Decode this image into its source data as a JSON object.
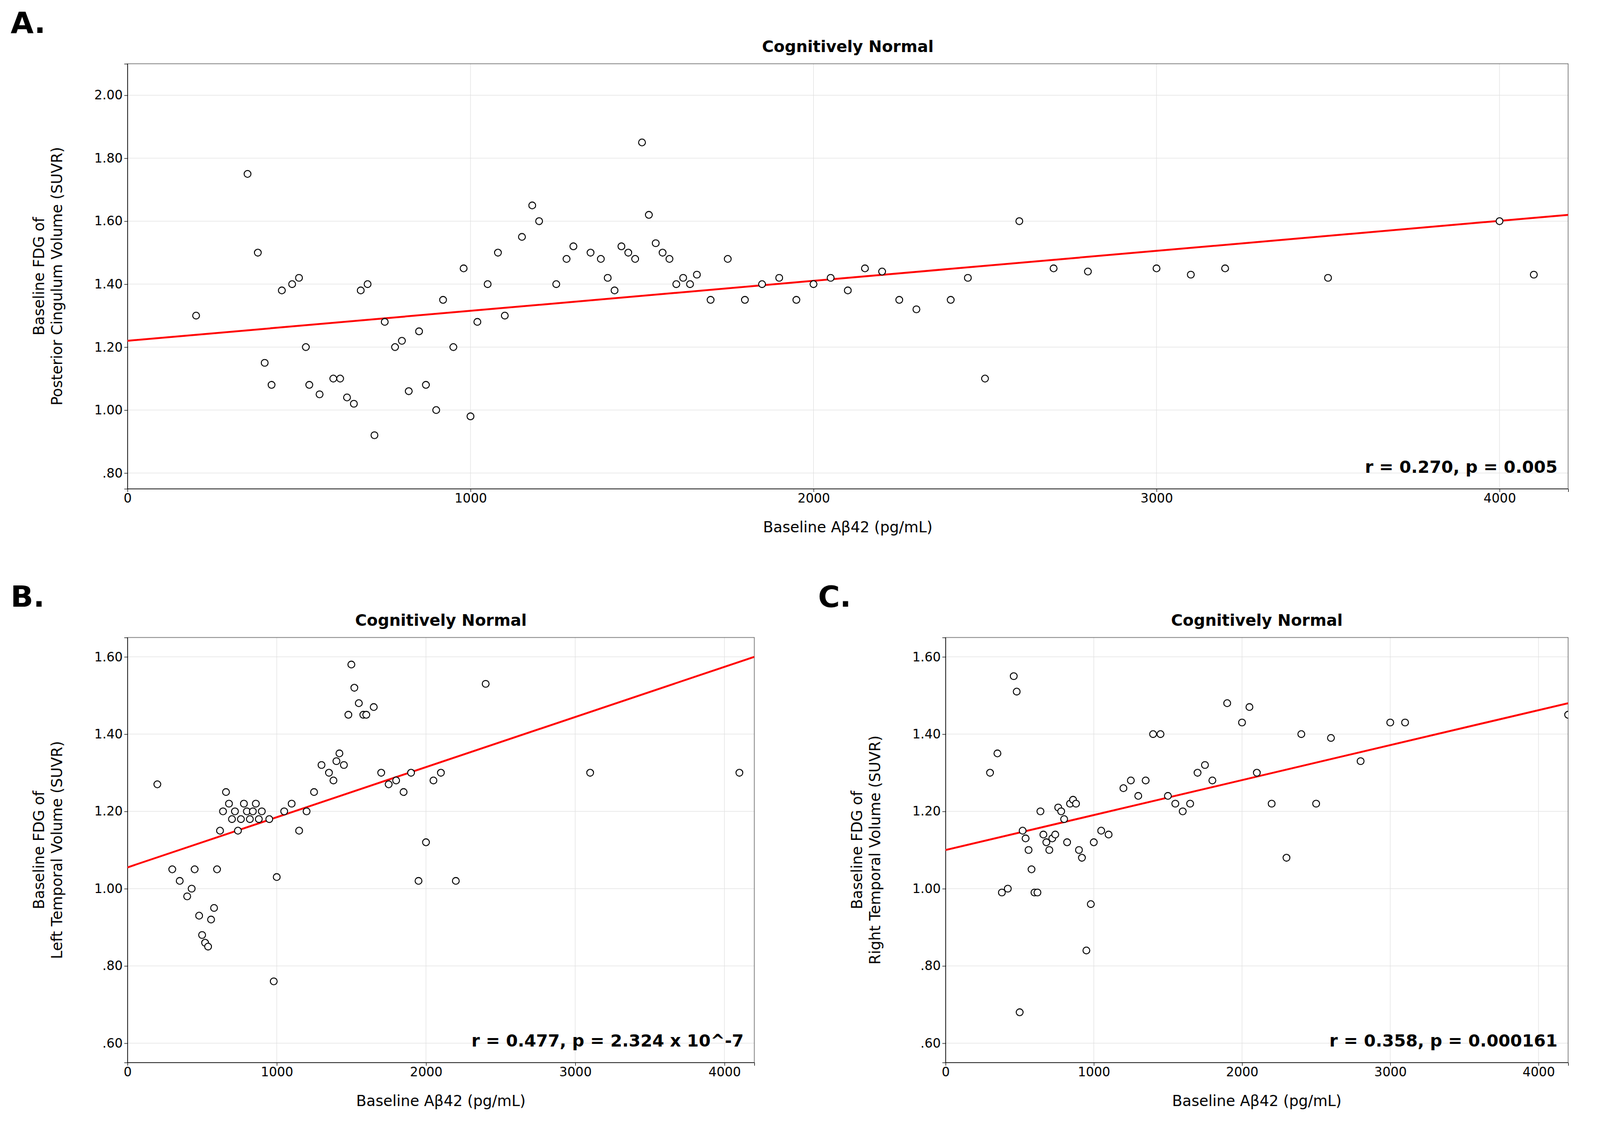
{
  "chart_data": [
    {
      "type": "scatter",
      "panel_label": "A.",
      "title": "Cognitively Normal",
      "xlabel": "Baseline Aβ42 (pg/mL)",
      "ylabel": "Baseline FDG of\nPosterior Cingulum Volume (SUVR)",
      "annotation": "r = 0.270, p = 0.005",
      "xlim": [
        0,
        4200
      ],
      "xticks": [
        0,
        1000,
        2000,
        3000,
        4000
      ],
      "ylim": [
        0.75,
        2.1
      ],
      "yticks": [
        {
          "value": 0.8,
          "label": ".80"
        },
        {
          "value": 1.0,
          "label": "1.00"
        },
        {
          "value": 1.2,
          "label": "1.20"
        },
        {
          "value": 1.4,
          "label": "1.40"
        },
        {
          "value": 1.6,
          "label": "1.60"
        },
        {
          "value": 1.8,
          "label": "1.80"
        },
        {
          "value": 2.0,
          "label": "2.00"
        }
      ],
      "grid": true,
      "series": [
        {
          "type": "scatter",
          "marker": "circle",
          "color": "#000000",
          "x": [
            200,
            350,
            380,
            400,
            420,
            450,
            480,
            500,
            520,
            530,
            560,
            600,
            620,
            640,
            660,
            680,
            700,
            720,
            750,
            780,
            800,
            820,
            850,
            870,
            900,
            920,
            950,
            980,
            1000,
            1020,
            1050,
            1080,
            1100,
            1150,
            1180,
            1200,
            1250,
            1280,
            1300,
            1350,
            1380,
            1400,
            1420,
            1440,
            1460,
            1480,
            1500,
            1520,
            1540,
            1560,
            1580,
            1600,
            1620,
            1640,
            1660,
            1700,
            1750,
            1800,
            1850,
            1900,
            1950,
            2000,
            2050,
            2100,
            2150,
            2200,
            2250,
            2300,
            2400,
            2450,
            2500,
            2600,
            2700,
            2800,
            3000,
            3100,
            3200,
            3500,
            4000,
            4100
          ],
          "values": [
            1.3,
            1.75,
            1.5,
            1.15,
            1.08,
            1.38,
            1.4,
            1.42,
            1.2,
            1.08,
            1.05,
            1.1,
            1.1,
            1.04,
            1.02,
            1.38,
            1.4,
            0.92,
            1.28,
            1.2,
            1.22,
            1.06,
            1.25,
            1.08,
            1.0,
            1.35,
            1.2,
            1.45,
            0.98,
            1.28,
            1.4,
            1.5,
            1.3,
            1.55,
            1.65,
            1.6,
            1.4,
            1.48,
            1.52,
            1.5,
            1.48,
            1.42,
            1.38,
            1.52,
            1.5,
            1.48,
            1.85,
            1.62,
            1.53,
            1.5,
            1.48,
            1.4,
            1.42,
            1.4,
            1.43,
            1.35,
            1.48,
            1.35,
            1.4,
            1.42,
            1.35,
            1.4,
            1.42,
            1.38,
            1.45,
            1.44,
            1.35,
            1.32,
            1.35,
            1.42,
            1.1,
            1.6,
            1.45,
            1.44,
            1.45,
            1.43,
            1.45,
            1.42,
            1.6,
            1.43
          ]
        },
        {
          "type": "line",
          "line_style": "solid",
          "color": "#FF0000",
          "x": [
            0,
            4200
          ],
          "values": [
            1.22,
            1.62
          ]
        }
      ]
    },
    {
      "type": "scatter",
      "panel_label": "B.",
      "title": "Cognitively Normal",
      "xlabel": "Baseline Aβ42 (pg/mL)",
      "ylabel": "Baseline FDG of\nLeft Temporal Volume (SUVR)",
      "annotation": "r = 0.477, p = 2.324 x 10^-7",
      "xlim": [
        0,
        4200
      ],
      "xticks": [
        0,
        1000,
        2000,
        3000,
        4000
      ],
      "ylim": [
        0.55,
        1.65
      ],
      "yticks": [
        {
          "value": 0.6,
          "label": ".60"
        },
        {
          "value": 0.8,
          "label": ".80"
        },
        {
          "value": 1.0,
          "label": "1.00"
        },
        {
          "value": 1.2,
          "label": "1.20"
        },
        {
          "value": 1.4,
          "label": "1.40"
        },
        {
          "value": 1.6,
          "label": "1.60"
        }
      ],
      "grid": true,
      "series": [
        {
          "type": "scatter",
          "marker": "circle",
          "color": "#000000",
          "x": [
            200,
            300,
            350,
            400,
            430,
            450,
            480,
            500,
            520,
            540,
            560,
            580,
            600,
            620,
            640,
            660,
            680,
            700,
            720,
            740,
            760,
            780,
            800,
            820,
            840,
            860,
            880,
            900,
            950,
            980,
            1000,
            1050,
            1100,
            1150,
            1200,
            1250,
            1300,
            1350,
            1380,
            1400,
            1420,
            1450,
            1480,
            1500,
            1520,
            1550,
            1580,
            1600,
            1650,
            1700,
            1750,
            1800,
            1850,
            1900,
            1950,
            2000,
            2050,
            2100,
            2200,
            2400,
            3100,
            4100
          ],
          "values": [
            1.27,
            1.05,
            1.02,
            0.98,
            1.0,
            1.05,
            0.93,
            0.88,
            0.86,
            0.85,
            0.92,
            0.95,
            1.05,
            1.15,
            1.2,
            1.25,
            1.22,
            1.18,
            1.2,
            1.15,
            1.18,
            1.22,
            1.2,
            1.18,
            1.2,
            1.22,
            1.18,
            1.2,
            1.18,
            0.76,
            1.03,
            1.2,
            1.22,
            1.15,
            1.2,
            1.25,
            1.32,
            1.3,
            1.28,
            1.33,
            1.35,
            1.32,
            1.45,
            1.58,
            1.52,
            1.48,
            1.45,
            1.45,
            1.47,
            1.3,
            1.27,
            1.28,
            1.25,
            1.3,
            1.02,
            1.12,
            1.28,
            1.3,
            1.02,
            1.53,
            1.3,
            1.3
          ]
        },
        {
          "type": "line",
          "line_style": "solid",
          "color": "#FF0000",
          "x": [
            0,
            4200
          ],
          "values": [
            1.055,
            1.6
          ]
        }
      ]
    },
    {
      "type": "scatter",
      "panel_label": "C.",
      "title": "Cognitively Normal",
      "xlabel": "Baseline Aβ42 (pg/mL)",
      "ylabel": "Baseline FDG of\nRight Temporal Volume (SUVR)",
      "annotation": "r = 0.358, p = 0.000161",
      "xlim": [
        0,
        4200
      ],
      "xticks": [
        0,
        1000,
        2000,
        3000,
        4000
      ],
      "ylim": [
        0.55,
        1.65
      ],
      "yticks": [
        {
          "value": 0.6,
          "label": ".60"
        },
        {
          "value": 0.8,
          "label": ".80"
        },
        {
          "value": 1.0,
          "label": "1.00"
        },
        {
          "value": 1.2,
          "label": "1.20"
        },
        {
          "value": 1.4,
          "label": "1.40"
        },
        {
          "value": 1.6,
          "label": "1.60"
        }
      ],
      "grid": true,
      "series": [
        {
          "type": "scatter",
          "marker": "circle",
          "color": "#000000",
          "x": [
            300,
            350,
            380,
            420,
            460,
            480,
            500,
            520,
            540,
            560,
            580,
            600,
            620,
            640,
            660,
            680,
            700,
            720,
            740,
            760,
            780,
            800,
            820,
            840,
            860,
            880,
            900,
            920,
            950,
            980,
            1000,
            1050,
            1100,
            1200,
            1250,
            1300,
            1350,
            1400,
            1450,
            1500,
            1550,
            1600,
            1650,
            1700,
            1750,
            1800,
            1900,
            2000,
            2050,
            2100,
            2200,
            2300,
            2400,
            2500,
            2600,
            2800,
            3000,
            3100,
            4200
          ],
          "values": [
            1.3,
            1.35,
            0.99,
            1.0,
            1.55,
            1.51,
            0.68,
            1.15,
            1.13,
            1.1,
            1.05,
            0.99,
            0.99,
            1.2,
            1.14,
            1.12,
            1.1,
            1.13,
            1.14,
            1.21,
            1.2,
            1.18,
            1.12,
            1.22,
            1.23,
            1.22,
            1.1,
            1.08,
            0.84,
            0.96,
            1.12,
            1.15,
            1.14,
            1.26,
            1.28,
            1.24,
            1.28,
            1.4,
            1.4,
            1.24,
            1.22,
            1.2,
            1.22,
            1.3,
            1.32,
            1.28,
            1.48,
            1.43,
            1.47,
            1.3,
            1.22,
            1.08,
            1.4,
            1.22,
            1.39,
            1.33,
            1.43,
            1.43,
            1.45
          ]
        },
        {
          "type": "line",
          "line_style": "solid",
          "color": "#FF0000",
          "x": [
            0,
            4200
          ],
          "values": [
            1.1,
            1.48
          ]
        }
      ]
    }
  ]
}
